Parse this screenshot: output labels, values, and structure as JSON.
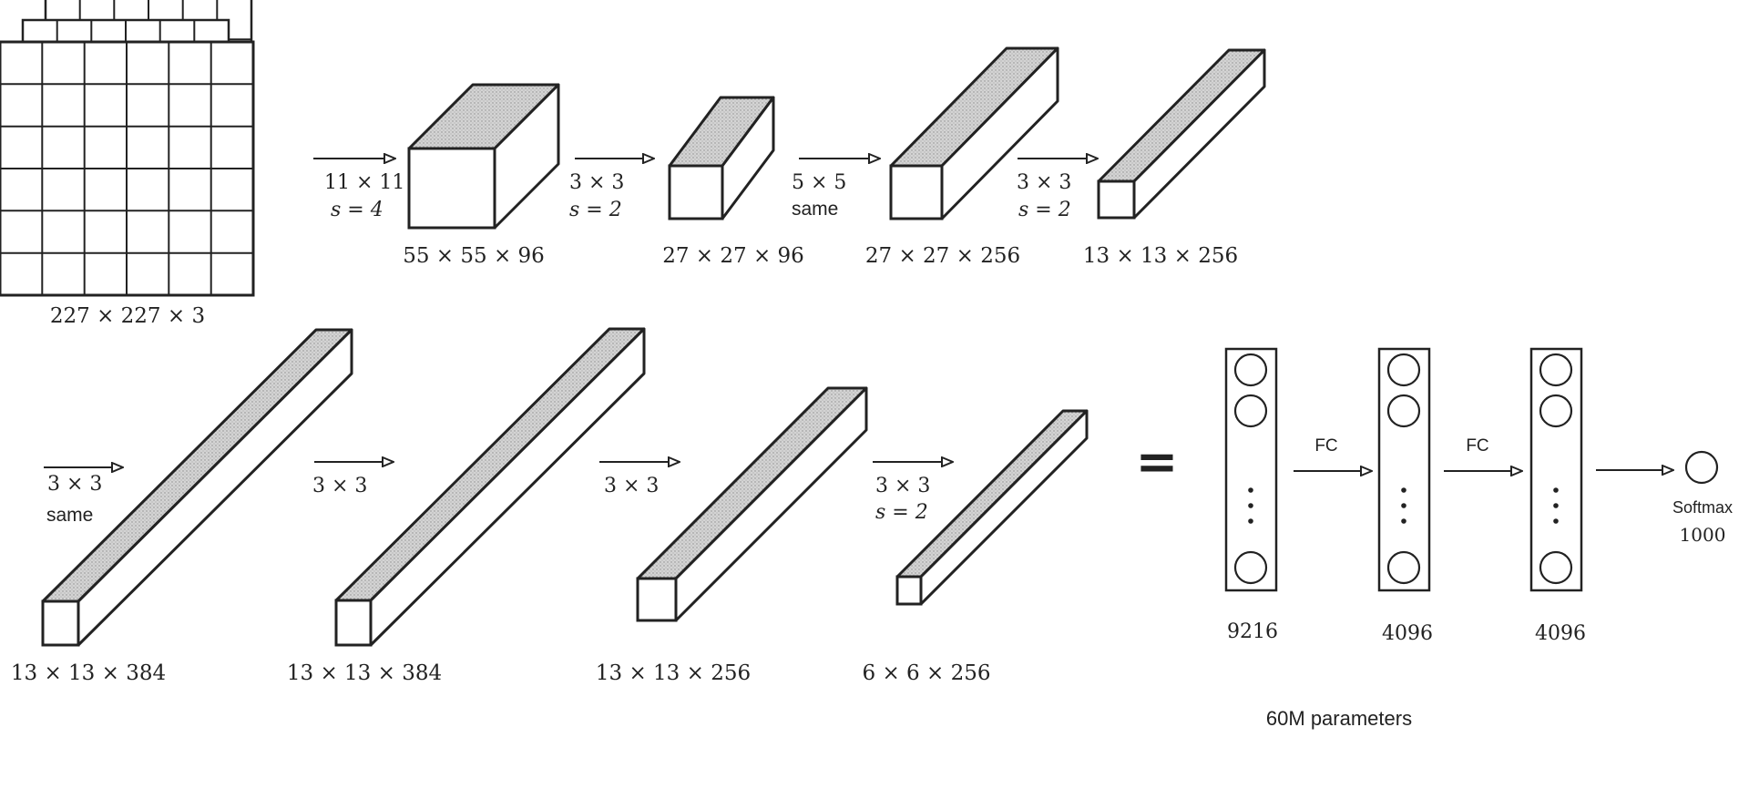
{
  "diagram": {
    "input_volume": {
      "label": "227 × 227 × 3"
    },
    "row1": {
      "arrows": [
        {
          "line1": "11 × 11",
          "line2": "s = 4"
        },
        {
          "line1": "3 × 3",
          "line2": "s = 2"
        },
        {
          "line1": "5 × 5",
          "line2": "same"
        },
        {
          "line1": "3 × 3",
          "line2": "s = 2"
        }
      ],
      "volumes": [
        {
          "label": "55 × 55 × 96"
        },
        {
          "label": "27 × 27 × 96"
        },
        {
          "label": "27 × 27 × 256"
        },
        {
          "label": "13 × 13 × 256"
        }
      ]
    },
    "row2": {
      "arrows": [
        {
          "line1": "3 × 3",
          "line2": "same"
        },
        {
          "line1": "3 × 3",
          "line2": ""
        },
        {
          "line1": "3 × 3",
          "line2": ""
        },
        {
          "line1": "3 × 3",
          "line2": "s = 2"
        }
      ],
      "volumes": [
        {
          "label": "13 × 13 × 384"
        },
        {
          "label": "13 × 13 × 384"
        },
        {
          "label": "13 × 13 × 256"
        },
        {
          "label": "6 × 6 × 256"
        }
      ]
    },
    "equals_sign": "=",
    "fc_layers": [
      {
        "label": "9216"
      },
      {
        "label": "4096"
      },
      {
        "label": "4096"
      }
    ],
    "fc_arrows": [
      {
        "label": "FC"
      },
      {
        "label": "FC"
      }
    ],
    "output": {
      "line1": "Softmax",
      "line2": "1000"
    },
    "parameter_count": "60M parameters"
  }
}
